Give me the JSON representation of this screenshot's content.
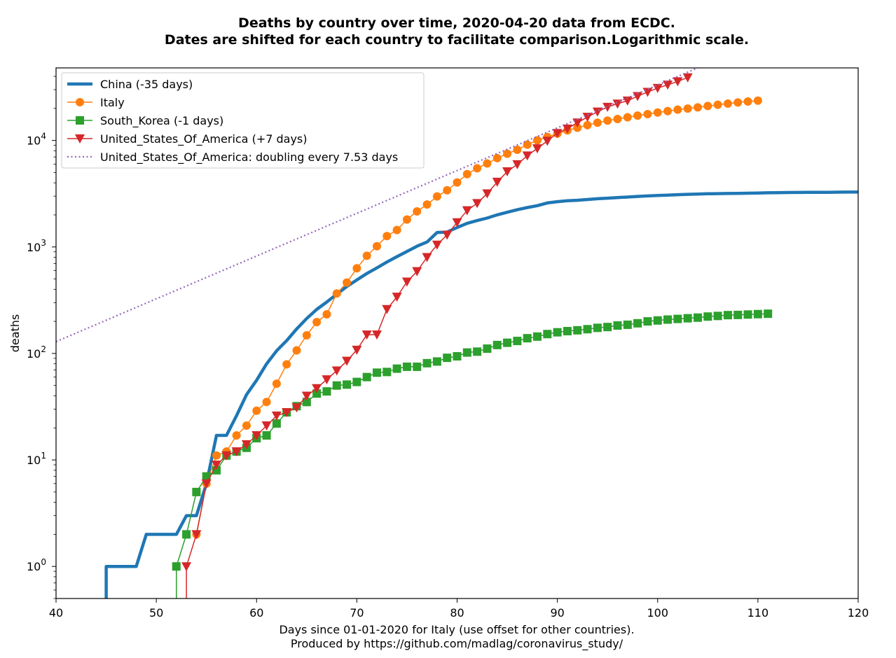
{
  "chart_data": {
    "type": "line",
    "title": "Deaths by country over time, 2020-04-20 data from ECDC.",
    "subtitle": "Dates are shifted for each country to facilitate comparison.Logarithmic scale.",
    "xlabel": "Days since 01-01-2020 for Italy (use offset for other countries).",
    "xlabel2": "Produced by https://github.com/madlag/coronavirus_study/",
    "ylabel": "deaths",
    "xlim": [
      40,
      120
    ],
    "ylim": [
      0.5,
      48000
    ],
    "yscale": "log",
    "grid": false,
    "legend_position": "top-left",
    "x_ticks": [
      40,
      50,
      60,
      70,
      80,
      90,
      100,
      110,
      120
    ],
    "y_ticks": [
      {
        "value": 1,
        "base": "10",
        "exp": "0"
      },
      {
        "value": 10,
        "base": "10",
        "exp": "1"
      },
      {
        "value": 100,
        "base": "10",
        "exp": "2"
      },
      {
        "value": 1000,
        "base": "10",
        "exp": "3"
      },
      {
        "value": 10000,
        "base": "10",
        "exp": "4"
      }
    ],
    "series": [
      {
        "name": "China (-35 days)",
        "color": "#1f77b4",
        "style": "step-line",
        "marker": "none",
        "points": [
          [
            45,
            0.3
          ],
          [
            45,
            1
          ],
          [
            48,
            1
          ],
          [
            49,
            2
          ],
          [
            52,
            2
          ],
          [
            53,
            3
          ],
          [
            54,
            3
          ],
          [
            55,
            6
          ],
          [
            56,
            17
          ],
          [
            57,
            17
          ],
          [
            58,
            26
          ],
          [
            59,
            41
          ],
          [
            60,
            56
          ],
          [
            61,
            80
          ],
          [
            62,
            106
          ],
          [
            63,
            132
          ],
          [
            64,
            170
          ],
          [
            65,
            213
          ],
          [
            66,
            259
          ],
          [
            67,
            304
          ],
          [
            68,
            361
          ],
          [
            69,
            425
          ],
          [
            70,
            490
          ],
          [
            71,
            563
          ],
          [
            72,
            636
          ],
          [
            73,
            722
          ],
          [
            74,
            811
          ],
          [
            75,
            908
          ],
          [
            76,
            1016
          ],
          [
            77,
            1113
          ],
          [
            78,
            1368
          ],
          [
            79,
            1380
          ],
          [
            80,
            1523
          ],
          [
            81,
            1665
          ],
          [
            82,
            1770
          ],
          [
            83,
            1868
          ],
          [
            84,
            2004
          ],
          [
            85,
            2118
          ],
          [
            86,
            2236
          ],
          [
            87,
            2345
          ],
          [
            88,
            2442
          ],
          [
            89,
            2592
          ],
          [
            90,
            2663
          ],
          [
            91,
            2715
          ],
          [
            92,
            2744
          ],
          [
            93,
            2788
          ],
          [
            94,
            2835
          ],
          [
            95,
            2870
          ],
          [
            96,
            2912
          ],
          [
            97,
            2943
          ],
          [
            98,
            2981
          ],
          [
            99,
            3013
          ],
          [
            100,
            3042
          ],
          [
            101,
            3070
          ],
          [
            102,
            3097
          ],
          [
            103,
            3119
          ],
          [
            104,
            3136
          ],
          [
            105,
            3158
          ],
          [
            106,
            3169
          ],
          [
            107,
            3176
          ],
          [
            108,
            3189
          ],
          [
            109,
            3199
          ],
          [
            110,
            3213
          ],
          [
            111,
            3226
          ],
          [
            112,
            3237
          ],
          [
            113,
            3245
          ],
          [
            114,
            3249
          ],
          [
            115,
            3253
          ],
          [
            116,
            3259
          ],
          [
            117,
            3261
          ],
          [
            118,
            3270
          ],
          [
            119,
            3274
          ],
          [
            120,
            3277
          ]
        ]
      },
      {
        "name": "Italy",
        "color": "#ff7f0e",
        "style": "line",
        "marker": "circle",
        "points": [
          [
            54,
            2
          ],
          [
            55,
            6
          ],
          [
            56,
            11
          ],
          [
            57,
            12
          ],
          [
            58,
            17
          ],
          [
            59,
            21
          ],
          [
            60,
            29
          ],
          [
            61,
            35
          ],
          [
            62,
            52
          ],
          [
            63,
            79
          ],
          [
            64,
            107
          ],
          [
            65,
            148
          ],
          [
            66,
            197
          ],
          [
            67,
            233
          ],
          [
            68,
            366
          ],
          [
            69,
            463
          ],
          [
            70,
            631
          ],
          [
            71,
            827
          ],
          [
            72,
            1016
          ],
          [
            73,
            1266
          ],
          [
            74,
            1441
          ],
          [
            75,
            1809
          ],
          [
            76,
            2158
          ],
          [
            77,
            2503
          ],
          [
            78,
            2978
          ],
          [
            79,
            3405
          ],
          [
            80,
            4032
          ],
          [
            81,
            4825
          ],
          [
            82,
            5476
          ],
          [
            83,
            6077
          ],
          [
            84,
            6820
          ],
          [
            85,
            7503
          ],
          [
            86,
            8165
          ],
          [
            87,
            9134
          ],
          [
            88,
            10023
          ],
          [
            89,
            10779
          ],
          [
            90,
            11591
          ],
          [
            91,
            12428
          ],
          [
            92,
            13155
          ],
          [
            93,
            13915
          ],
          [
            94,
            14681
          ],
          [
            95,
            15362
          ],
          [
            96,
            15887
          ],
          [
            97,
            16523
          ],
          [
            98,
            17127
          ],
          [
            99,
            17669
          ],
          [
            100,
            18279
          ],
          [
            101,
            18849
          ],
          [
            102,
            19468
          ],
          [
            103,
            19899
          ],
          [
            104,
            20465
          ],
          [
            105,
            21067
          ],
          [
            106,
            21645
          ],
          [
            107,
            22170
          ],
          [
            108,
            22745
          ],
          [
            109,
            23227
          ],
          [
            110,
            23660
          ]
        ]
      },
      {
        "name": "South_Korea (-1 days)",
        "color": "#2ca02c",
        "style": "line",
        "marker": "square",
        "points": [
          [
            52,
            0.3
          ],
          [
            52,
            1
          ],
          [
            53,
            2
          ],
          [
            54,
            5
          ],
          [
            55,
            7
          ],
          [
            56,
            8
          ],
          [
            57,
            11
          ],
          [
            58,
            12
          ],
          [
            59,
            13
          ],
          [
            60,
            16
          ],
          [
            61,
            17
          ],
          [
            62,
            22
          ],
          [
            63,
            28
          ],
          [
            64,
            32
          ],
          [
            65,
            35
          ],
          [
            66,
            42
          ],
          [
            67,
            44
          ],
          [
            68,
            50
          ],
          [
            69,
            51
          ],
          [
            70,
            54
          ],
          [
            71,
            60
          ],
          [
            72,
            66
          ],
          [
            73,
            67
          ],
          [
            74,
            72
          ],
          [
            75,
            75
          ],
          [
            76,
            75
          ],
          [
            77,
            81
          ],
          [
            78,
            84
          ],
          [
            79,
            91
          ],
          [
            80,
            94
          ],
          [
            81,
            102
          ],
          [
            82,
            104
          ],
          [
            83,
            111
          ],
          [
            84,
            120
          ],
          [
            85,
            126
          ],
          [
            86,
            131
          ],
          [
            87,
            139
          ],
          [
            88,
            144
          ],
          [
            89,
            152
          ],
          [
            90,
            158
          ],
          [
            91,
            162
          ],
          [
            92,
            165
          ],
          [
            93,
            169
          ],
          [
            94,
            174
          ],
          [
            95,
            177
          ],
          [
            96,
            183
          ],
          [
            97,
            186
          ],
          [
            98,
            192
          ],
          [
            99,
            200
          ],
          [
            100,
            204
          ],
          [
            101,
            208
          ],
          [
            102,
            211
          ],
          [
            103,
            214
          ],
          [
            104,
            217
          ],
          [
            105,
            222
          ],
          [
            106,
            225
          ],
          [
            107,
            229
          ],
          [
            108,
            230
          ],
          [
            109,
            232
          ],
          [
            110,
            234
          ],
          [
            111,
            236
          ]
        ]
      },
      {
        "name": "United_States_Of_America (+7 days)",
        "color": "#d62728",
        "style": "line",
        "marker": "triangle-down",
        "points": [
          [
            53,
            0.3
          ],
          [
            53,
            1
          ],
          [
            54,
            2
          ],
          [
            55,
            6
          ],
          [
            56,
            9
          ],
          [
            57,
            11
          ],
          [
            58,
            12
          ],
          [
            59,
            14
          ],
          [
            60,
            17
          ],
          [
            61,
            21
          ],
          [
            62,
            26
          ],
          [
            63,
            28
          ],
          [
            64,
            31
          ],
          [
            65,
            40
          ],
          [
            66,
            47
          ],
          [
            67,
            57
          ],
          [
            68,
            69
          ],
          [
            69,
            85
          ],
          [
            70,
            108
          ],
          [
            71,
            150
          ],
          [
            72,
            150
          ],
          [
            73,
            260
          ],
          [
            74,
            340
          ],
          [
            75,
            471
          ],
          [
            76,
            590
          ],
          [
            77,
            801
          ],
          [
            78,
            1046
          ],
          [
            79,
            1300
          ],
          [
            80,
            1700
          ],
          [
            81,
            2200
          ],
          [
            82,
            2573
          ],
          [
            83,
            3170
          ],
          [
            84,
            4079
          ],
          [
            85,
            5106
          ],
          [
            86,
            5961
          ],
          [
            87,
            7192
          ],
          [
            88,
            8404
          ],
          [
            89,
            9881
          ],
          [
            90,
            11700
          ],
          [
            91,
            12900
          ],
          [
            92,
            14700
          ],
          [
            93,
            16600
          ],
          [
            94,
            18600
          ],
          [
            95,
            20600
          ],
          [
            96,
            22100
          ],
          [
            97,
            23600
          ],
          [
            98,
            26000
          ],
          [
            99,
            28500
          ],
          [
            100,
            31000
          ],
          [
            101,
            33300
          ],
          [
            102,
            35800
          ],
          [
            103,
            39000
          ]
        ]
      },
      {
        "name": "United_States_Of_America: doubling every 7.53 days",
        "color": "#9467bd",
        "style": "dotted",
        "marker": "none",
        "points": [
          [
            40,
            129
          ],
          [
            48,
            271
          ],
          [
            56,
            568
          ],
          [
            64,
            1189
          ],
          [
            72,
            2492
          ],
          [
            80,
            5220
          ],
          [
            88,
            10900
          ],
          [
            96,
            22900
          ],
          [
            104,
            48000
          ]
        ]
      }
    ]
  }
}
